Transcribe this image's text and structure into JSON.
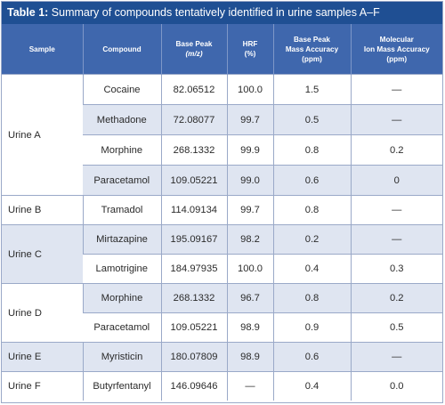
{
  "caption": {
    "label": "Table 1:",
    "text": " Summary of compounds tentatively identified in urine samples A–F"
  },
  "headers": {
    "sample": "Sample",
    "compound": "Compound",
    "base_peak_line1": "Base Peak",
    "base_peak_unit": "(m/z)",
    "hrf_line1": "HRF",
    "hrf_unit": "(%)",
    "bpma_line1": "Base Peak",
    "bpma_line2": "Mass Accuracy",
    "bpma_unit": "(ppm)",
    "mima_line1": "Molecular",
    "mima_line2": "Ion Mass Accuracy",
    "mima_unit": "(ppm)"
  },
  "samples": {
    "a": "Urine A",
    "b": "Urine B",
    "c": "Urine C",
    "d": "Urine D",
    "e": "Urine E",
    "f": "Urine F"
  },
  "rows": [
    {
      "compound": "Cocaine",
      "base_peak": "82.06512",
      "hrf": "100.0",
      "bpma": "1.5",
      "mima": "—"
    },
    {
      "compound": "Methadone",
      "base_peak": "72.08077",
      "hrf": "99.7",
      "bpma": "0.5",
      "mima": "—"
    },
    {
      "compound": "Morphine",
      "base_peak": "268.1332",
      "hrf": "99.9",
      "bpma": "0.8",
      "mima": "0.2"
    },
    {
      "compound": "Paracetamol",
      "base_peak": "109.05221",
      "hrf": "99.0",
      "bpma": "0.6",
      "mima": "0"
    },
    {
      "compound": "Tramadol",
      "base_peak": "114.09134",
      "hrf": "99.7",
      "bpma": "0.8",
      "mima": "—"
    },
    {
      "compound": "Mirtazapine",
      "base_peak": "195.09167",
      "hrf": "98.2",
      "bpma": "0.2",
      "mima": "—"
    },
    {
      "compound": "Lamotrigine",
      "base_peak": "184.97935",
      "hrf": "100.0",
      "bpma": "0.4",
      "mima": "0.3"
    },
    {
      "compound": "Morphine",
      "base_peak": "268.1332",
      "hrf": "96.7",
      "bpma": "0.8",
      "mima": "0.2"
    },
    {
      "compound": "Paracetamol",
      "base_peak": "109.05221",
      "hrf": "98.9",
      "bpma": "0.9",
      "mima": "0.5"
    },
    {
      "compound": "Myristicin",
      "base_peak": "180.07809",
      "hrf": "98.9",
      "bpma": "0.6",
      "mima": "—"
    },
    {
      "compound": "Butyrfentanyl",
      "base_peak": "146.09646",
      "hrf": "—",
      "bpma": "0.4",
      "mima": "0.0"
    }
  ],
  "colors": {
    "caption_bg": "#1f4f93",
    "header_bg": "#3f67ad",
    "row_shade": "#dfe5f1",
    "rule": "#9aa9c8"
  }
}
